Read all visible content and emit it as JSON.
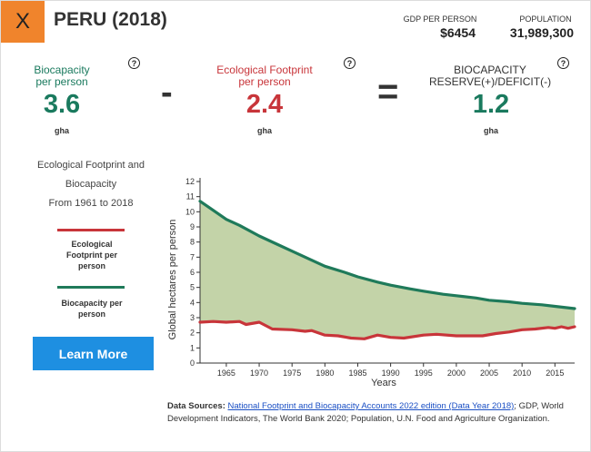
{
  "header": {
    "close_label": "X",
    "country_title": "PERU (2018)",
    "gdp_label": "GDP PER PERSON",
    "gdp_value": "$6454",
    "population_label": "POPULATION",
    "population_value": "31,989,300"
  },
  "metrics": {
    "biocapacity": {
      "title_line1": "Biocapacity",
      "title_line2": "per person",
      "value": "3.6",
      "unit": "gha",
      "color": "#1a7a5e"
    },
    "minus_sign": "-",
    "footprint": {
      "title_line1": "Ecological Footprint",
      "title_line2": "per person",
      "value": "2.4",
      "unit": "gha",
      "color": "#c8353a"
    },
    "equals_sign": "=",
    "reserve": {
      "title_line1": "BIOCAPACITY",
      "title_line2": "RESERVE(+)/DEFICIT(-)",
      "value": "1.2",
      "unit": "gha",
      "color": "#1a7a5e"
    },
    "help_symbol": "?"
  },
  "sidebar": {
    "chart_desc_line1": "Ecological Footprint and",
    "chart_desc_line2": "Biocapacity",
    "chart_desc_line3": "From 1961 to 2018",
    "legend_footprint_line1": "Ecological",
    "legend_footprint_line2": "Footprint per",
    "legend_footprint_line3": "person",
    "legend_biocap_line1": "Biocapacity per",
    "legend_biocap_line2": "person",
    "learn_more": "Learn More"
  },
  "sources": {
    "label": "Data Sources:",
    "link_text": "National Footprint and Biocapacity Accounts 2022 edition (Data Year 2018)",
    "rest": "; GDP, World Development Indicators, The World Bank 2020; Population, U.N. Food and Agriculture Organization."
  },
  "chart_data": {
    "type": "area",
    "xlabel": "Years",
    "ylabel": "Global hectares per person",
    "xlim": [
      1961,
      2018
    ],
    "ylim": [
      0,
      12
    ],
    "x_ticks": [
      1965,
      1970,
      1975,
      1980,
      1985,
      1990,
      1995,
      2000,
      2005,
      2010,
      2015
    ],
    "y_ticks": [
      0,
      1,
      2,
      3,
      4,
      5,
      6,
      7,
      8,
      9,
      10,
      11,
      12
    ],
    "grid": false,
    "fill_color": "#c3d3a8",
    "series": [
      {
        "key": "biocapacity",
        "color": "#1f7a5a",
        "x": [
          1961,
          1963,
          1965,
          1967,
          1970,
          1973,
          1975,
          1978,
          1980,
          1983,
          1985,
          1988,
          1990,
          1993,
          1995,
          1998,
          2000,
          2003,
          2005,
          2008,
          2010,
          2013,
          2015,
          2018
        ],
        "values": [
          10.7,
          10.1,
          9.5,
          9.1,
          8.4,
          7.8,
          7.4,
          6.8,
          6.4,
          6.0,
          5.7,
          5.35,
          5.15,
          4.9,
          4.75,
          4.55,
          4.45,
          4.3,
          4.15,
          4.05,
          3.95,
          3.85,
          3.75,
          3.6
        ]
      },
      {
        "key": "footprint",
        "color": "#c8353a",
        "x": [
          1961,
          1963,
          1965,
          1967,
          1968,
          1970,
          1972,
          1975,
          1977,
          1978,
          1980,
          1982,
          1984,
          1986,
          1988,
          1990,
          1992,
          1995,
          1997,
          2000,
          2002,
          2004,
          2006,
          2008,
          2010,
          2012,
          2014,
          2015,
          2016,
          2017,
          2018
        ],
        "values": [
          2.7,
          2.75,
          2.7,
          2.75,
          2.55,
          2.7,
          2.25,
          2.2,
          2.1,
          2.15,
          1.85,
          1.8,
          1.65,
          1.6,
          1.85,
          1.7,
          1.65,
          1.85,
          1.9,
          1.8,
          1.8,
          1.8,
          1.95,
          2.05,
          2.2,
          2.25,
          2.35,
          2.3,
          2.4,
          2.3,
          2.4
        ]
      }
    ]
  }
}
